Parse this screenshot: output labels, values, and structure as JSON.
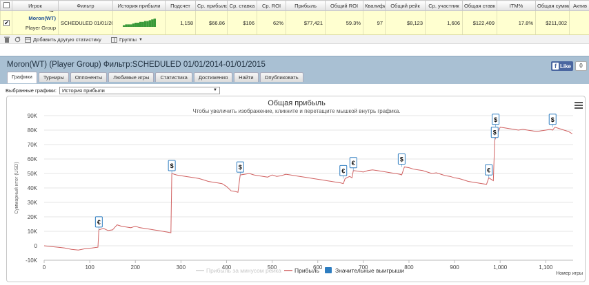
{
  "stats": {
    "columns": [
      "",
      "Игрок",
      "Фильтр",
      "История прибыли",
      "Подсчет",
      "Ср. прибыль",
      "Ср. ставка",
      "Ср. ROI",
      "Прибыль",
      "Общий ROI",
      "Квалифи",
      "Общий рейк",
      "Ср. участник",
      "Общая ставк",
      "ITM%",
      "Общая сумма",
      "Актив"
    ],
    "row": {
      "checked": "✔",
      "player": "Moron(WT)",
      "group": "Player Group",
      "filter": "SCHEDULED 01/01/2014-01/01/2015",
      "count": "1,158",
      "avg_profit": "$66.86",
      "avg_stake": "$106",
      "avg_roi": "62%",
      "profit": "$77,421",
      "total_roi": "59.3%",
      "qualified": "97",
      "total_rake": "$8,123",
      "avg_entrants": "1,606",
      "total_stake": "$122,409",
      "itm": "17.8%",
      "total_sum": "$211,002",
      "active": ""
    },
    "toolbar": {
      "add_stat": "Добавить другую статистику",
      "groups": "Группы"
    },
    "sparkline": [
      2,
      3,
      3,
      3,
      4,
      5,
      5,
      6,
      6,
      7,
      7,
      8,
      9,
      10
    ]
  },
  "header": {
    "title": "Moron(WT) (Player Group) Фильтр:SCHEDULED 01/01/2014-01/01/2015",
    "like": "Like",
    "like_count": "0",
    "tabs": [
      "Графики",
      "Турниры",
      "Оппоненты",
      "Любимые игры",
      "Статистика",
      "Достижения",
      "Найти",
      "Опубликовать"
    ]
  },
  "chart_select": {
    "label": "Выбранные графики:",
    "value": "История прибыли"
  },
  "colors": {
    "profit_line": "#d06060",
    "rake_line": "#bbbbbb",
    "marker": "#2e7dc0",
    "accent": "#4a66a0"
  },
  "chart_data": {
    "type": "line",
    "title": "Общая прибыль",
    "subtitle": "Чтобы увеличить изображение, кликните и перетащите мышкой внутрь графика.",
    "ylabel": "Суммарный итог (USD)",
    "xlabel": "Номер игры",
    "xlim": [
      0,
      1160
    ],
    "ylim": [
      -10000,
      90000
    ],
    "yticks": [
      -10000,
      0,
      10000,
      20000,
      30000,
      40000,
      50000,
      60000,
      70000,
      80000,
      90000
    ],
    "ytick_labels": [
      "-10K",
      "0",
      "10K",
      "20K",
      "30K",
      "40K",
      "50K",
      "60K",
      "70K",
      "80K",
      "90K"
    ],
    "xticks": [
      0,
      100,
      200,
      300,
      400,
      500,
      600,
      700,
      800,
      900,
      1000,
      1100
    ],
    "xtick_labels": [
      "0",
      "100",
      "200",
      "300",
      "400",
      "500",
      "600",
      "700",
      "800",
      "900",
      "1,000",
      "1,100"
    ],
    "series": [
      {
        "name": "Прибыль",
        "x": [
          0,
          15,
          30,
          45,
          60,
          75,
          90,
          105,
          118,
          120,
          130,
          140,
          150,
          160,
          170,
          180,
          190,
          200,
          210,
          220,
          230,
          240,
          250,
          260,
          270,
          278,
          280,
          290,
          300,
          310,
          320,
          330,
          340,
          350,
          360,
          370,
          380,
          390,
          400,
          410,
          420,
          425,
          430,
          440,
          450,
          460,
          470,
          480,
          490,
          500,
          510,
          520,
          530,
          540,
          550,
          560,
          570,
          580,
          590,
          600,
          610,
          620,
          630,
          640,
          650,
          656,
          660,
          670,
          675,
          678,
          690,
          700,
          710,
          720,
          730,
          740,
          750,
          760,
          770,
          780,
          784,
          790,
          800,
          810,
          820,
          830,
          840,
          850,
          860,
          870,
          880,
          890,
          900,
          910,
          920,
          930,
          940,
          950,
          960,
          970,
          975,
          985,
          988,
          1000,
          1010,
          1020,
          1030,
          1040,
          1050,
          1060,
          1070,
          1080,
          1090,
          1100,
          1110,
          1115,
          1120,
          1130,
          1140,
          1150,
          1158
        ],
        "y": [
          0,
          -500,
          -1000,
          -1500,
          -2500,
          -3000,
          -2000,
          -1500,
          -1000,
          11000,
          12000,
          10500,
          11000,
          14500,
          13500,
          13000,
          12500,
          13500,
          12500,
          12000,
          11500,
          11000,
          10500,
          10000,
          9500,
          9000,
          50000,
          49000,
          48500,
          48000,
          47500,
          47000,
          46500,
          45500,
          44500,
          44000,
          43500,
          43000,
          41000,
          38000,
          37500,
          37000,
          49000,
          49500,
          50000,
          49000,
          48500,
          48000,
          47500,
          49000,
          48000,
          48500,
          49500,
          49000,
          48500,
          48000,
          47500,
          47000,
          46500,
          46000,
          45500,
          45000,
          44500,
          44000,
          43500,
          43000,
          46500,
          48000,
          47000,
          52000,
          51500,
          51000,
          52000,
          52500,
          52000,
          51500,
          51000,
          50500,
          50000,
          49500,
          49000,
          54500,
          54000,
          53000,
          52500,
          52000,
          51000,
          50000,
          50500,
          49500,
          48500,
          48000,
          47000,
          46500,
          45500,
          44500,
          44000,
          43500,
          43000,
          42500,
          47000,
          45000,
          73000,
          82000,
          81500,
          81000,
          80500,
          80000,
          80500,
          80000,
          79500,
          79000,
          79500,
          80000,
          80500,
          80000,
          82000,
          81000,
          80000,
          79000,
          77500
        ]
      },
      {
        "name": "Прибыль за минусом рейка",
        "x": [],
        "y": []
      }
    ],
    "markers": [
      {
        "x": 120,
        "y": 11000,
        "label": "€"
      },
      {
        "x": 280,
        "y": 50000,
        "label": "$"
      },
      {
        "x": 430,
        "y": 49000,
        "label": "$"
      },
      {
        "x": 656,
        "y": 46500,
        "label": "€"
      },
      {
        "x": 678,
        "y": 52000,
        "label": "€"
      },
      {
        "x": 784,
        "y": 54500,
        "label": "$"
      },
      {
        "x": 975,
        "y": 47000,
        "label": "€"
      },
      {
        "x": 988,
        "y": 73000,
        "label": "$"
      },
      {
        "x": 990,
        "y": 82000,
        "label": "$"
      },
      {
        "x": 1115,
        "y": 82000,
        "label": "$"
      }
    ],
    "legend": [
      "Прибыль за минусом рейка",
      "Прибыль",
      "Значительные выигрыши"
    ],
    "legend_position": "bottom-center",
    "grid": true
  }
}
